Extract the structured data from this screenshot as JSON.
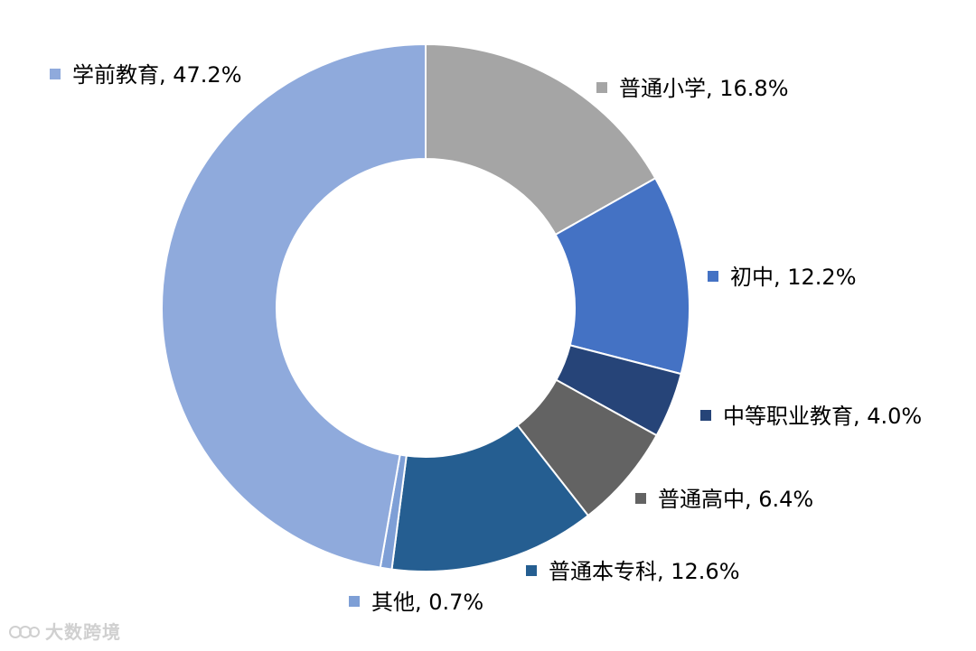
{
  "chart_data": {
    "type": "pie",
    "variant": "donut",
    "title": "",
    "slices": [
      {
        "label": "普通小学",
        "value": 16.8,
        "display": "16.8%",
        "color": "#a5a5a5",
        "legend_text": "普通小学, 16.8%"
      },
      {
        "label": "初中",
        "value": 12.2,
        "display": "12.2%",
        "color": "#4472c4",
        "legend_text": "初中, 12.2%"
      },
      {
        "label": "中等职业教育",
        "value": 4.0,
        "display": "4.0%",
        "color": "#264478",
        "legend_text": "中等职业教育, 4.0%"
      },
      {
        "label": "普通高中",
        "value": 6.4,
        "display": "6.4%",
        "color": "#636363",
        "legend_text": "普通高中, 6.4%"
      },
      {
        "label": "普通本专科",
        "value": 12.6,
        "display": "12.6%",
        "color": "#255e91",
        "legend_text": "普通本专科, 12.6%"
      },
      {
        "label": "其他",
        "value": 0.7,
        "display": "0.7%",
        "color": "#7e9fd6",
        "legend_text": "其他, 0.7%"
      },
      {
        "label": "学前教育",
        "value": 47.2,
        "display": "47.2%",
        "color": "#8faadc",
        "legend_text": "学前教育, 47.2%"
      }
    ],
    "start_angle": "12 o'clock",
    "direction": "clockwise",
    "legend": "labels beside slices"
  },
  "watermark": {
    "text": "大数跨境"
  }
}
